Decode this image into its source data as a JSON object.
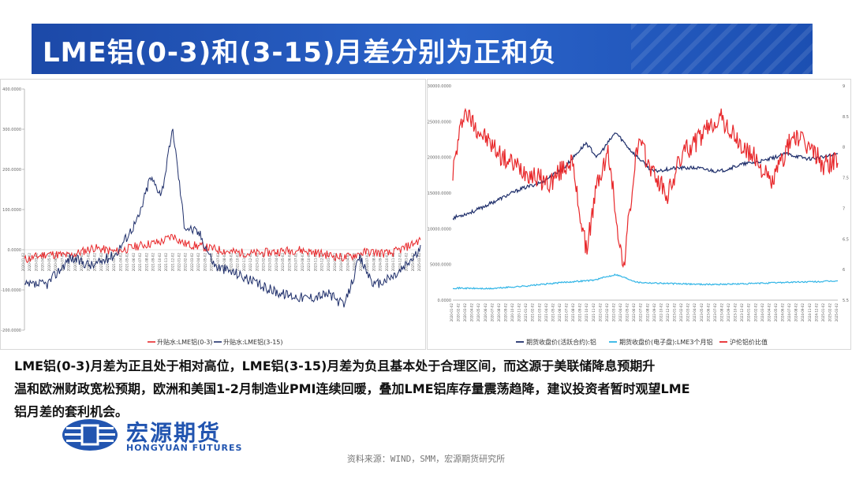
{
  "title": "LME铝(0-3)和(3-15)月差分别为正和负",
  "summary_lines": [
    "LME铝(0-3)月差为正且处于相对高位，LME铝(3-15)月差为负且基本处于合理区间，而这源于美联储降息预期升",
    "温和欧洲财政宽松预期，欧洲和美国1-2月制造业PMI连续回暖，叠加LME铝库存量震荡趋降，建议投资者暂时观望LME",
    "铝月差的套利机会。"
  ],
  "logo": {
    "cn": "宏源期货",
    "en": "HONGYUAN FUTURES"
  },
  "source": "资料来源：WIND，SMM，宏源期货研究所",
  "colors": {
    "red": "#e8282b",
    "navy": "#1f2f6b",
    "cyan": "#2fb4e6",
    "title_bg": "#1f50b4"
  },
  "chart_data": [
    {
      "type": "line",
      "ylim": [
        -200,
        400
      ],
      "y_ticks": [
        "400.0000",
        "300.0000",
        "200.0000",
        "100.0000",
        "0.0000",
        "-100.0000",
        "-200.0000"
      ],
      "x_range": [
        "2020-01",
        "2025-03"
      ],
      "series": [
        {
          "name": "升贴水:LME铝(0-3)",
          "color": "#e8282b",
          "x": [
            2020.0,
            2020.3,
            2020.6,
            2020.9,
            2021.2,
            2021.5,
            2021.8,
            2021.95,
            2022.1,
            2022.4,
            2022.7,
            2023.0,
            2023.3,
            2023.6,
            2023.9,
            2024.2,
            2024.5,
            2024.8,
            2025.0,
            2025.2
          ],
          "values": [
            -25,
            -10,
            -15,
            5,
            -5,
            10,
            20,
            35,
            15,
            5,
            -5,
            -10,
            -5,
            0,
            -10,
            -20,
            -5,
            -10,
            5,
            25
          ]
        },
        {
          "name": "升贴水:LME铝(3-15)",
          "color": "#1f2f6b",
          "x": [
            2020.0,
            2020.3,
            2020.6,
            2020.9,
            2021.2,
            2021.5,
            2021.65,
            2021.8,
            2021.95,
            2022.1,
            2022.3,
            2022.5,
            2022.8,
            2023.1,
            2023.4,
            2023.7,
            2024.0,
            2024.2,
            2024.4,
            2024.6,
            2024.9,
            2025.1,
            2025.2
          ],
          "values": [
            -90,
            -85,
            -20,
            -40,
            -10,
            80,
            180,
            140,
            300,
            60,
            40,
            -40,
            -60,
            -90,
            -110,
            -120,
            -110,
            -140,
            -20,
            -90,
            -60,
            -20,
            0
          ]
        }
      ]
    },
    {
      "type": "line",
      "ylim_left": [
        0,
        30000
      ],
      "ylim_right": [
        5.5,
        9
      ],
      "y_ticks_left": [
        "30000.0000",
        "25000.0000",
        "20000.0000",
        "15000.0000",
        "10000.0000",
        "5000.0000",
        "0.0000"
      ],
      "y_ticks_right": [
        "9",
        "8.5",
        "8",
        "7.5",
        "7",
        "6.5",
        "6",
        "5.5"
      ],
      "x_range": [
        "2020-01",
        "2025-03"
      ],
      "series": [
        {
          "name": "期货收盘价(活跃合约):铝",
          "color": "#1f2f6b",
          "axis": "left",
          "x": [
            2020.0,
            2020.3,
            2020.6,
            2020.9,
            2021.2,
            2021.5,
            2021.8,
            2021.95,
            2022.2,
            2022.4,
            2022.7,
            2023.0,
            2023.3,
            2023.6,
            2023.9,
            2024.2,
            2024.5,
            2024.8,
            2025.0,
            2025.2
          ],
          "values": [
            11500,
            12500,
            14000,
            15500,
            16500,
            18500,
            22000,
            20000,
            23500,
            21000,
            18000,
            18500,
            18500,
            18000,
            19000,
            19500,
            20500,
            19800,
            20000,
            20500
          ]
        },
        {
          "name": "期货收盘价(电子盘):LME3个月铝",
          "color": "#2fb4e6",
          "axis": "left",
          "x": [
            2020.0,
            2020.5,
            2021.0,
            2021.5,
            2021.9,
            2022.2,
            2022.5,
            2023.0,
            2023.5,
            2024.0,
            2024.5,
            2025.0,
            2025.2
          ],
          "values": [
            1700,
            1600,
            2000,
            2500,
            2800,
            3600,
            2500,
            2300,
            2200,
            2300,
            2500,
            2600,
            2700
          ]
        },
        {
          "name": "沪伦铝价比值",
          "color": "#e8282b",
          "axis": "right",
          "x": [
            2020.0,
            2020.15,
            2020.4,
            2020.7,
            2021.0,
            2021.3,
            2021.6,
            2021.8,
            2021.95,
            2022.1,
            2022.3,
            2022.5,
            2022.7,
            2022.9,
            2023.1,
            2023.3,
            2023.6,
            2023.9,
            2024.1,
            2024.3,
            2024.6,
            2024.9,
            2025.0,
            2025.2
          ],
          "values": [
            7.6,
            8.6,
            8.2,
            7.8,
            7.6,
            7.4,
            7.8,
            6.3,
            7.4,
            7.9,
            6.0,
            8.1,
            7.6,
            7.2,
            7.9,
            8.1,
            8.5,
            8.0,
            7.8,
            7.4,
            8.2,
            7.9,
            7.7,
            7.8
          ]
        }
      ]
    }
  ]
}
